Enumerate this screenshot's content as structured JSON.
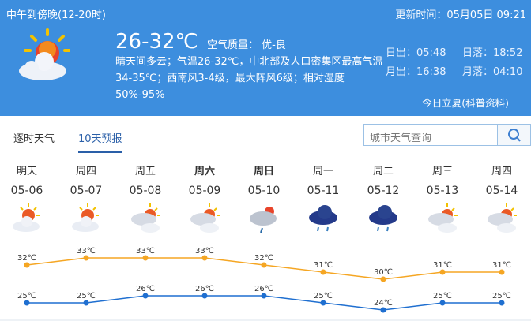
{
  "header": {
    "period": "中午到傍晚(12-20时)",
    "updated": "更新时间：05月05日 09:21",
    "temperature": "26-32℃",
    "air_quality": "空气质量： 优-良",
    "description": "晴天间多云；气温26-32℃，中北部及人口密集区最高气温34-35℃；西南风3-4级，最大阵风6级；相对湿度50%-95%",
    "sunrise": "日出：05:48",
    "sunset": "日落：18:52",
    "moonrise": "月出：16:38",
    "moonset": "月落：04:10",
    "link": "今日立夏(科普资料)",
    "icon": "sun-cloud-icon",
    "bg_color": "#3d8ede"
  },
  "tabs": [
    {
      "label": "逐时天气"
    },
    {
      "label": "10天预报",
      "active": true
    }
  ],
  "search": {
    "placeholder": "城市天气查询",
    "icon": "search-icon"
  },
  "forecast": [
    {
      "day": "明天",
      "date": "05-06",
      "icon": "sun-cloud",
      "bold": false
    },
    {
      "day": "周四",
      "date": "05-07",
      "icon": "sun-cloud",
      "bold": false
    },
    {
      "day": "周五",
      "date": "05-08",
      "icon": "partly-cloudy",
      "bold": false
    },
    {
      "day": "周六",
      "date": "05-09",
      "icon": "partly-cloudy",
      "bold": true
    },
    {
      "day": "周日",
      "date": "05-10",
      "icon": "shower",
      "bold": true
    },
    {
      "day": "周一",
      "date": "05-11",
      "icon": "rain",
      "bold": false
    },
    {
      "day": "周二",
      "date": "05-12",
      "icon": "rain",
      "bold": false
    },
    {
      "day": "周三",
      "date": "05-13",
      "icon": "partly-cloudy",
      "bold": false
    },
    {
      "day": "周四",
      "date": "05-14",
      "icon": "partly-cloudy",
      "bold": false
    }
  ],
  "chart_data": {
    "type": "line",
    "categories": [
      "05-06",
      "05-07",
      "05-08",
      "05-09",
      "05-10",
      "05-11",
      "05-12",
      "05-13",
      "05-14"
    ],
    "series": [
      {
        "values": [
          32,
          33,
          33,
          33,
          32,
          31,
          30,
          31,
          31
        ],
        "color": "#f5a623"
      },
      {
        "values": [
          25,
          25,
          26,
          26,
          26,
          25,
          24,
          25,
          25
        ],
        "color": "#1f6fd0"
      }
    ],
    "unit": "℃"
  }
}
